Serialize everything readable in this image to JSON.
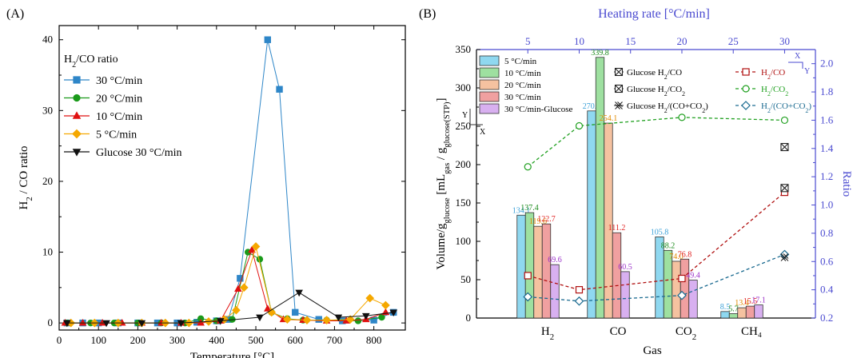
{
  "chart_data": [
    {
      "type": "line",
      "panel_label": "(A)",
      "xlabel": "Temperature [°C]",
      "ylabel": "H₂ / CO ratio",
      "xlim": [
        0,
        880
      ],
      "ylim": [
        -1,
        42
      ],
      "xticks": [
        0,
        100,
        200,
        300,
        400,
        500,
        600,
        700,
        800
      ],
      "yticks": [
        0,
        10,
        20,
        30,
        40
      ],
      "legend_title": "H₂/CO ratio",
      "legend_position": "top-left",
      "series": [
        {
          "name": "30 °C/min",
          "color": "#2e86c8",
          "marker": "square",
          "x": [
            20,
            60,
            100,
            150,
            200,
            250,
            300,
            350,
            400,
            430,
            460,
            530,
            560,
            600,
            660,
            720,
            800,
            850
          ],
          "y": [
            0,
            0,
            0,
            0,
            0,
            0,
            0,
            0.1,
            0.3,
            0.5,
            6.3,
            40,
            33,
            1.5,
            0.5,
            0.3,
            0.4,
            1.5
          ]
        },
        {
          "name": "20 °C/min",
          "color": "#1a9a1a",
          "marker": "circle",
          "x": [
            20,
            80,
            140,
            200,
            260,
            320,
            360,
            400,
            440,
            480,
            510,
            540,
            580,
            620,
            680,
            760,
            820
          ],
          "y": [
            0,
            0,
            0,
            0,
            0,
            0,
            0.6,
            0.3,
            0.5,
            10.0,
            9.0,
            1.5,
            0.6,
            0.4,
            0.4,
            0.3,
            0.8
          ]
        },
        {
          "name": "10 °C/min",
          "color": "#e01010",
          "marker": "triangle-up",
          "x": [
            15,
            60,
            110,
            160,
            210,
            260,
            310,
            360,
            410,
            455,
            490,
            530,
            570,
            620,
            680,
            730,
            780,
            830
          ],
          "y": [
            0,
            0,
            0,
            0,
            0,
            0,
            0,
            0,
            0.3,
            4.8,
            10.3,
            2.0,
            0.5,
            0.4,
            0.3,
            0.3,
            0.5,
            1.5
          ]
        },
        {
          "name": "5 °C/min",
          "color": "#f5a800",
          "marker": "diamond",
          "x": [
            30,
            90,
            150,
            210,
            270,
            330,
            380,
            420,
            450,
            470,
            500,
            540,
            580,
            630,
            680,
            740,
            790,
            830
          ],
          "y": [
            0,
            0,
            0,
            0,
            0,
            0,
            0.2,
            0.5,
            1.8,
            5.0,
            10.8,
            1.5,
            0.5,
            0.4,
            0.4,
            0.5,
            3.5,
            2.5
          ]
        },
        {
          "name": "Glucose 30 °C/min",
          "color": "#111111",
          "marker": "triangle-down",
          "x": [
            20,
            120,
            210,
            310,
            410,
            510,
            610,
            710,
            780,
            850
          ],
          "y": [
            0,
            0,
            0,
            0,
            0.3,
            0.8,
            4.3,
            0.8,
            1.0,
            1.5
          ]
        }
      ]
    },
    {
      "type": "bar",
      "panel_label": "(B)",
      "title": "Heating rate [°C/min]",
      "xlabel": "Gas",
      "ylabel": "Volume/g_glucose [mL_gas / g_glucose (STP)]",
      "ylabel_parts": {
        "a": "Volume/g",
        "a_sub": "glucose",
        "b": " [mL",
        "b_sub": "gas",
        "c": " / g",
        "c_sub": "glucose",
        "c_sub2": "(STP)",
        "d": "]"
      },
      "y2label": "Ratio",
      "categories": [
        "H₂",
        "CO",
        "CO₂",
        "CH₄"
      ],
      "ylim": [
        0,
        350
      ],
      "yticks": [
        0,
        50,
        100,
        150,
        200,
        250,
        300,
        350
      ],
      "y2lim": [
        0.2,
        2.1
      ],
      "y2ticks": [
        "0.2",
        "0.4",
        "0.6",
        "0.8",
        "1.0",
        "1.2",
        "1.4",
        "1.6",
        "1.8",
        "2.0"
      ],
      "x2lim": [
        0,
        33
      ],
      "x2ticks": [
        5,
        10,
        15,
        20,
        25,
        30
      ],
      "series": [
        {
          "name": "5 °C/min",
          "color": "#8fd8f0",
          "label_color": "#3aa0d8",
          "values": [
            134.1,
            270.0,
            105.8,
            8.5
          ],
          "labels": [
            "134.1",
            "270.0",
            "105.8",
            "8.5"
          ]
        },
        {
          "name": "10 °C/min",
          "color": "#9ee0a0",
          "label_color": "#1a8a1a",
          "values": [
            137.4,
            339.8,
            88.2,
            5.7
          ],
          "labels": [
            "137.4",
            "339.8",
            "88.2",
            "5.7"
          ]
        },
        {
          "name": "20 °C/min",
          "color": "#f5c2a0",
          "label_color": "#e08a00",
          "values": [
            119.6,
            254.1,
            74.0,
            13.4
          ],
          "labels": [
            "119.6",
            "254.1",
            "74.0",
            "13.4"
          ]
        },
        {
          "name": "30 °C/min",
          "color": "#f0a0a0",
          "label_color": "#e02020",
          "values": [
            122.7,
            111.2,
            76.8,
            15.5
          ],
          "labels": [
            "122.7",
            "111.2",
            "76.8",
            "15.5"
          ]
        },
        {
          "name": "30 °C/min-Glucose",
          "color": "#d8b0f0",
          "label_color": "#9a30c8",
          "values": [
            69.6,
            60.5,
            49.4,
            17.1
          ],
          "labels": [
            "69.6",
            "60.5",
            "49.4",
            "17.1"
          ]
        }
      ],
      "ratio_series": [
        {
          "name": "H₂/CO",
          "color": "#b01010",
          "marker": "square",
          "x": [
            5,
            10,
            20,
            30
          ],
          "y": [
            0.5,
            0.4,
            0.48,
            1.09
          ]
        },
        {
          "name": "H₂/CO₂",
          "color": "#20a020",
          "marker": "circle",
          "x": [
            5,
            10,
            20,
            30
          ],
          "y": [
            1.27,
            1.56,
            1.62,
            1.6
          ]
        },
        {
          "name": "H₂/(CO+CO₂)",
          "color": "#1a6a90",
          "marker": "diamond",
          "x": [
            5,
            10,
            20,
            30
          ],
          "y": [
            0.35,
            0.32,
            0.36,
            0.65
          ]
        }
      ],
      "glucose_points": [
        {
          "name": "Glucose H₂/CO",
          "marker": "box-x",
          "x": 30,
          "y": 1.12
        },
        {
          "name": "Glucose H₂/CO₂",
          "marker": "box-x",
          "x": 30,
          "y": 1.41
        },
        {
          "name": "Glucose H₂/(CO+CO₂)",
          "marker": "double-x",
          "x": 30,
          "y": 0.63
        }
      ],
      "inset_axis_labels": {
        "x": "X",
        "y": "Y"
      }
    }
  ]
}
